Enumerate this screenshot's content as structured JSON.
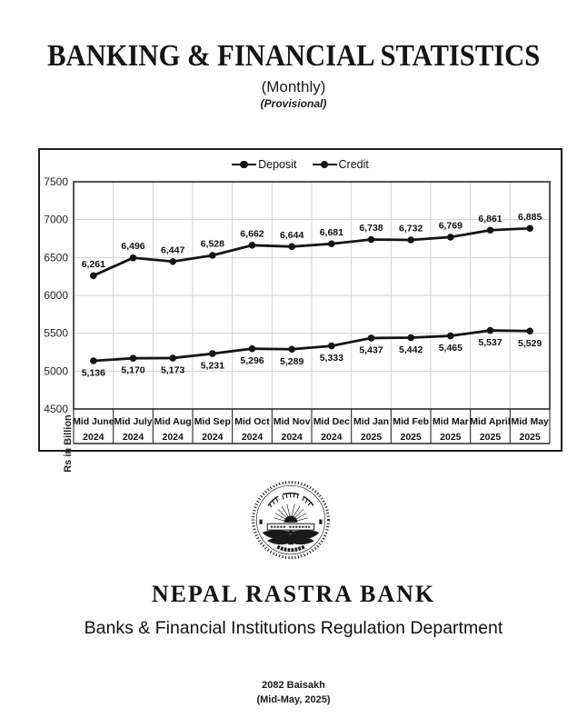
{
  "header": {
    "title": "BANKING & FINANCIAL STATISTICS",
    "subtitle": "(Monthly)",
    "note": "(Provisional)"
  },
  "chart_data": {
    "type": "line",
    "ylabel": "Rs in Billion",
    "ylim": [
      4500,
      7500
    ],
    "yticks": [
      7500,
      7000,
      6500,
      6000,
      5500,
      5000,
      4500
    ],
    "grid": true,
    "legend_position": "top-center",
    "line_color": "#141414",
    "grid_color": "#d2d2d2",
    "categories": [
      {
        "month": "Mid June",
        "year": "2024"
      },
      {
        "month": "Mid July",
        "year": "2024"
      },
      {
        "month": "Mid Aug",
        "year": "2024"
      },
      {
        "month": "Mid Sep",
        "year": "2024"
      },
      {
        "month": "Mid Oct",
        "year": "2024"
      },
      {
        "month": "Mid Nov",
        "year": "2024"
      },
      {
        "month": "Mid Dec",
        "year": "2024"
      },
      {
        "month": "Mid Jan",
        "year": "2025"
      },
      {
        "month": "Mid Feb",
        "year": "2025"
      },
      {
        "month": "Mid Mar",
        "year": "2025"
      },
      {
        "month": "Mid April",
        "year": "2025"
      },
      {
        "month": "Mid May",
        "year": "2025"
      }
    ],
    "series": [
      {
        "name": "Deposit",
        "values": [
          6261,
          6496,
          6447,
          6528,
          6662,
          6644,
          6681,
          6738,
          6732,
          6769,
          6861,
          6885
        ],
        "labels": [
          "6,261",
          "6,496",
          "6,447",
          "6,528",
          "6,662",
          "6,644",
          "6,681",
          "6,738",
          "6,732",
          "6,769",
          "6,861",
          "6,885"
        ],
        "label_position": "above"
      },
      {
        "name": "Credit",
        "values": [
          5136,
          5170,
          5173,
          5231,
          5296,
          5289,
          5333,
          5437,
          5442,
          5465,
          5537,
          5529
        ],
        "labels": [
          "5,136",
          "5,170",
          "5,173",
          "5,231",
          "5,296",
          "5,289",
          "5,333",
          "5,437",
          "5,442",
          "5,465",
          "5,537",
          "5,529"
        ],
        "label_position": "below"
      }
    ]
  },
  "footer": {
    "logo_icon": "nepal-rastra-bank-seal",
    "bank_name": "NEPAL RASTRA BANK",
    "department": "Banks & Financial Institutions Regulation Department",
    "date_np": "2082 Baisakh",
    "date_en": "(Mid-May, 2025)"
  }
}
